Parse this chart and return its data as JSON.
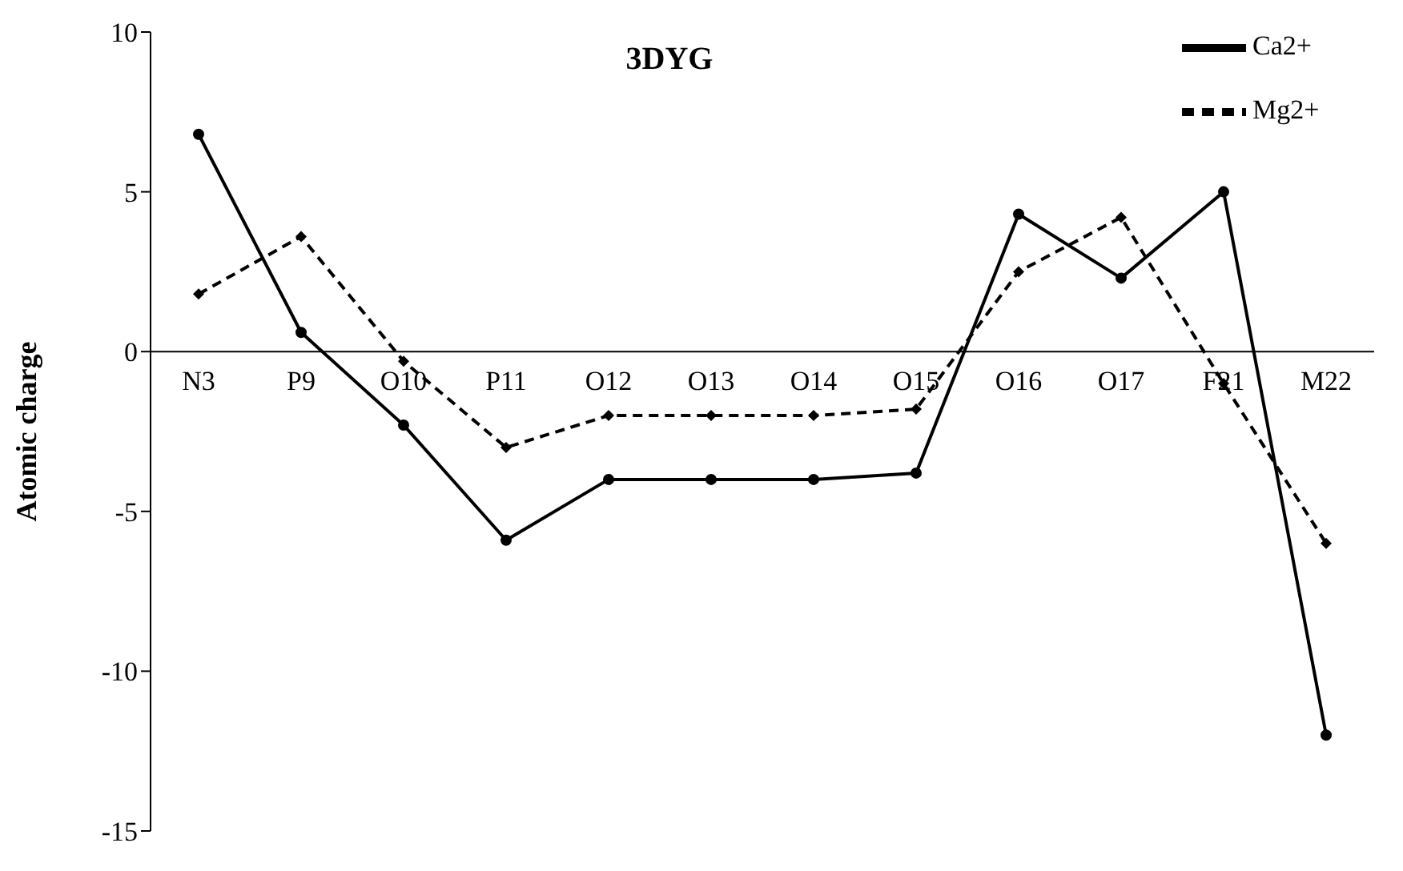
{
  "chart_data": {
    "type": "line",
    "title": "3DYG",
    "ylabel": "Atomic charge",
    "categories": [
      "N3",
      "P9",
      "O10",
      "P11",
      "O12",
      "O13",
      "O14",
      "O15",
      "O16",
      "O17",
      "F21",
      "M22"
    ],
    "series": [
      {
        "name": "Ca2+",
        "color": "#000000",
        "line_style": "solid",
        "marker": "circle",
        "values": [
          6.8,
          0.6,
          -2.3,
          -5.9,
          -4,
          -4,
          -4,
          -3.8,
          4.3,
          2.3,
          5,
          -12
        ]
      },
      {
        "name": "Mg2+",
        "color": "#000000",
        "line_style": "dashed",
        "marker": "diamond",
        "values": [
          1.8,
          3.6,
          -0.3,
          -3,
          -2,
          -2,
          -2,
          -1.8,
          2.5,
          4.2,
          -1,
          -6
        ]
      }
    ],
    "ylim": [
      -15,
      10
    ],
    "yticks": [
      -15,
      -10,
      -5,
      0,
      5,
      10
    ],
    "grid": false,
    "legend": "top right"
  }
}
